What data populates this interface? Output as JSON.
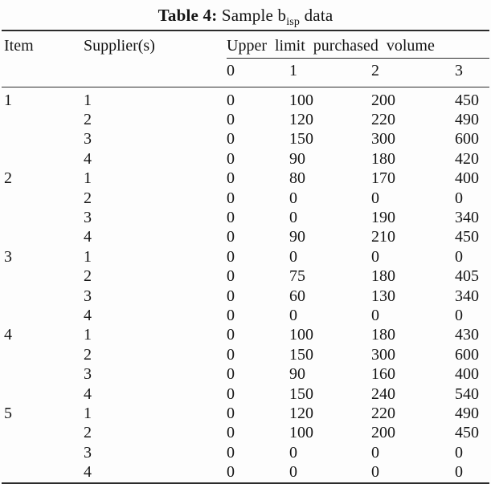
{
  "title": {
    "label": "Table 4:",
    "caption_pre": "Sample b",
    "subscript": "isp",
    "caption_post": "data"
  },
  "table": {
    "columns": {
      "item": "Item",
      "supplier": "Supplier(s)",
      "group": "Upper limit purchased volume",
      "levels": [
        "0",
        "1",
        "2",
        "3"
      ]
    },
    "rows": [
      {
        "item": "1",
        "supplier": "1",
        "values": [
          "0",
          "100",
          "200",
          "450"
        ]
      },
      {
        "item": "",
        "supplier": "2",
        "values": [
          "0",
          "120",
          "220",
          "490"
        ]
      },
      {
        "item": "",
        "supplier": "3",
        "values": [
          "0",
          "150",
          "300",
          "600"
        ]
      },
      {
        "item": "",
        "supplier": "4",
        "values": [
          "0",
          "90",
          "180",
          "420"
        ]
      },
      {
        "item": "2",
        "supplier": "1",
        "values": [
          "0",
          "80",
          "170",
          "400"
        ]
      },
      {
        "item": "",
        "supplier": "2",
        "values": [
          "0",
          "0",
          "0",
          "0"
        ]
      },
      {
        "item": "",
        "supplier": "3",
        "values": [
          "0",
          "0",
          "190",
          "340"
        ]
      },
      {
        "item": "",
        "supplier": "4",
        "values": [
          "0",
          "90",
          "210",
          "450"
        ]
      },
      {
        "item": "3",
        "supplier": "1",
        "values": [
          "0",
          "0",
          "0",
          "0"
        ]
      },
      {
        "item": "",
        "supplier": "2",
        "values": [
          "0",
          "75",
          "180",
          "405"
        ]
      },
      {
        "item": "",
        "supplier": "3",
        "values": [
          "0",
          "60",
          "130",
          "340"
        ]
      },
      {
        "item": "",
        "supplier": "4",
        "values": [
          "0",
          "0",
          "0",
          "0"
        ]
      },
      {
        "item": "4",
        "supplier": "1",
        "values": [
          "0",
          "100",
          "180",
          "430"
        ]
      },
      {
        "item": "",
        "supplier": "2",
        "values": [
          "0",
          "150",
          "300",
          "600"
        ]
      },
      {
        "item": "",
        "supplier": "3",
        "values": [
          "0",
          "90",
          "160",
          "400"
        ]
      },
      {
        "item": "",
        "supplier": "4",
        "values": [
          "0",
          "150",
          "240",
          "540"
        ]
      },
      {
        "item": "5",
        "supplier": "1",
        "values": [
          "0",
          "120",
          "220",
          "490"
        ]
      },
      {
        "item": "",
        "supplier": "2",
        "values": [
          "0",
          "100",
          "200",
          "450"
        ]
      },
      {
        "item": "",
        "supplier": "3",
        "values": [
          "0",
          "0",
          "0",
          "0"
        ]
      },
      {
        "item": "",
        "supplier": "4",
        "values": [
          "0",
          "0",
          "0",
          "0"
        ]
      }
    ]
  },
  "colors": {
    "background": "#fdfdfd",
    "text": "#151515",
    "rule": "#2b2b2b"
  }
}
